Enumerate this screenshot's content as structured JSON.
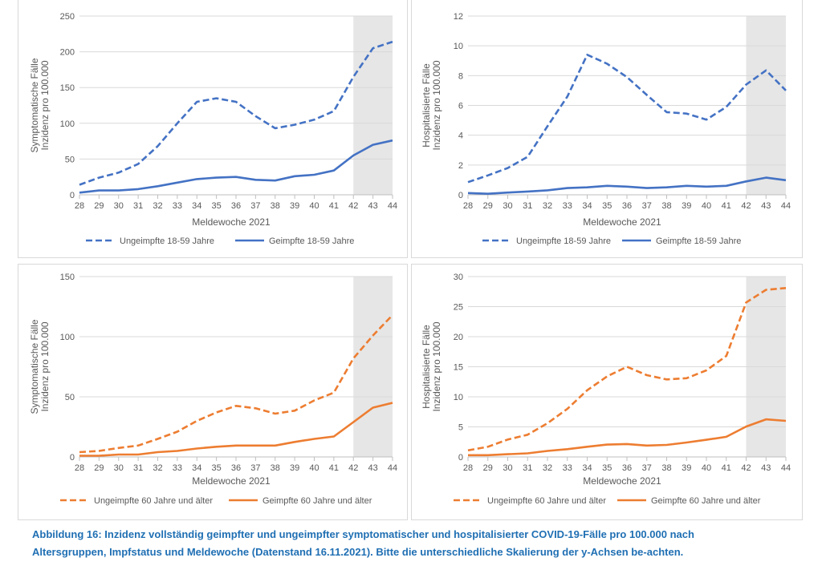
{
  "caption": "Abbildung 16: Inzidenz vollständig geimpfter und ungeimpfter symptomatischer und hospitalisierter COVID-19-Fälle pro 100.000 nach Altersgruppen, Impfstatus und Meldewoche (Datenstand 16.11.2021). Bitte die unterschiedliche Skalierung der y-Achsen be-achten.",
  "colors": {
    "blue": "#4472c4",
    "orange": "#ed7d31",
    "shade": "#e6e6e6",
    "grid": "#d9d9d9",
    "axis": "#bfbfbf"
  },
  "chart_data": [
    {
      "type": "line",
      "categories": [
        "28",
        "29",
        "30",
        "31",
        "32",
        "33",
        "34",
        "35",
        "36",
        "37",
        "38",
        "39",
        "40",
        "41",
        "42",
        "43",
        "44"
      ],
      "shaded_categories": [
        "42",
        "44"
      ],
      "xlabel": "Meldewoche 2021",
      "ylabel": [
        "Symptomatische Fälle",
        "Inzidenz pro 100.000"
      ],
      "ylim": [
        0,
        250
      ],
      "yticks": [
        0,
        50,
        100,
        150,
        200,
        250
      ],
      "ytick_labels": [
        "0",
        "50",
        "100",
        "150",
        "200",
        "250"
      ],
      "color": "#4472c4",
      "series": [
        {
          "name": "Ungeimpfte 18-59 Jahre",
          "style": "dashed",
          "values": [
            14,
            24,
            31,
            43,
            68,
            100,
            130,
            135,
            130,
            110,
            93,
            98,
            105,
            117,
            165,
            205,
            214
          ]
        },
        {
          "name": "Geimpfte 18-59 Jahre",
          "style": "solid",
          "values": [
            3,
            6,
            6,
            8,
            12,
            17,
            22,
            24,
            25,
            21,
            20,
            26,
            28,
            34,
            55,
            70,
            76
          ]
        }
      ]
    },
    {
      "type": "line",
      "categories": [
        "28",
        "29",
        "30",
        "31",
        "32",
        "33",
        "34",
        "35",
        "36",
        "37",
        "38",
        "39",
        "40",
        "41",
        "42",
        "43",
        "44"
      ],
      "shaded_categories": [
        "42",
        "44"
      ],
      "xlabel": "Meldewoche 2021",
      "ylabel": [
        "Hospitalisierte Fälle",
        "Inzidenz pro 100.000"
      ],
      "ylim": [
        0,
        12
      ],
      "yticks": [
        0,
        2,
        4,
        6,
        8,
        10,
        12
      ],
      "ytick_labels": [
        "0",
        "2",
        "4",
        "6",
        "8",
        "10",
        "12"
      ],
      "color": "#4472c4",
      "series": [
        {
          "name": "Ungeimpfte 18-59 Jahre",
          "style": "dashed",
          "values": [
            0.85,
            1.3,
            1.8,
            2.55,
            4.6,
            6.6,
            9.4,
            8.8,
            7.9,
            6.7,
            5.55,
            5.45,
            5.05,
            5.9,
            7.4,
            8.35,
            7.0
          ]
        },
        {
          "name": "Geimpfte 18-59 Jahre",
          "style": "solid",
          "values": [
            0.12,
            0.07,
            0.15,
            0.22,
            0.3,
            0.45,
            0.5,
            0.6,
            0.55,
            0.45,
            0.5,
            0.6,
            0.55,
            0.6,
            0.9,
            1.15,
            0.98
          ]
        }
      ]
    },
    {
      "type": "line",
      "categories": [
        "28",
        "29",
        "30",
        "31",
        "32",
        "33",
        "34",
        "35",
        "36",
        "37",
        "38",
        "39",
        "40",
        "41",
        "42",
        "43",
        "44"
      ],
      "shaded_categories": [
        "42",
        "44"
      ],
      "xlabel": "Meldewoche 2021",
      "ylabel": [
        "Symptomatische Fälle",
        "Inzidenz pro 100.000"
      ],
      "ylim": [
        0,
        150
      ],
      "yticks": [
        0,
        50,
        100,
        150
      ],
      "ytick_labels": [
        "0",
        "50",
        "100",
        "150"
      ],
      "color": "#ed7d31",
      "series": [
        {
          "name": "Ungeimpfte 60 Jahre und älter",
          "style": "dashed",
          "values": [
            4,
            5,
            7.5,
            9.5,
            15,
            21,
            30,
            37,
            42.5,
            40.5,
            36,
            38.5,
            47,
            53.5,
            82,
            101,
            118
          ]
        },
        {
          "name": "Geimpfte 60 Jahre und älter",
          "style": "solid",
          "values": [
            1,
            1,
            2,
            2,
            4,
            5,
            7,
            8.5,
            9.5,
            9.5,
            9.5,
            12.5,
            15,
            17,
            29,
            41,
            45
          ]
        }
      ]
    },
    {
      "type": "line",
      "categories": [
        "28",
        "29",
        "30",
        "31",
        "32",
        "33",
        "34",
        "35",
        "36",
        "37",
        "38",
        "39",
        "40",
        "41",
        "42",
        "43",
        "44"
      ],
      "shaded_categories": [
        "42",
        "44"
      ],
      "xlabel": "Meldewoche 2021",
      "ylabel": [
        "Hospitalisierte Fälle",
        "Inzidenz pro 100.000"
      ],
      "ylim": [
        0,
        30
      ],
      "yticks": [
        0,
        5,
        10,
        15,
        20,
        25,
        30
      ],
      "ytick_labels": [
        "0",
        "5",
        "10",
        "15",
        "20",
        "25",
        "30"
      ],
      "color": "#ed7d31",
      "series": [
        {
          "name": "Ungeimpfte 60 Jahre und älter",
          "style": "dashed",
          "values": [
            1.1,
            1.7,
            2.9,
            3.7,
            5.6,
            8.0,
            11.1,
            13.4,
            15.0,
            13.6,
            12.9,
            13.1,
            14.4,
            16.8,
            25.7,
            27.8,
            28.1
          ]
        },
        {
          "name": "Geimpfte 60 Jahre und älter",
          "style": "solid",
          "values": [
            0.3,
            0.3,
            0.45,
            0.6,
            1.0,
            1.3,
            1.7,
            2.05,
            2.15,
            1.9,
            2.0,
            2.4,
            2.85,
            3.35,
            5.05,
            6.25,
            6.0
          ]
        }
      ]
    }
  ]
}
